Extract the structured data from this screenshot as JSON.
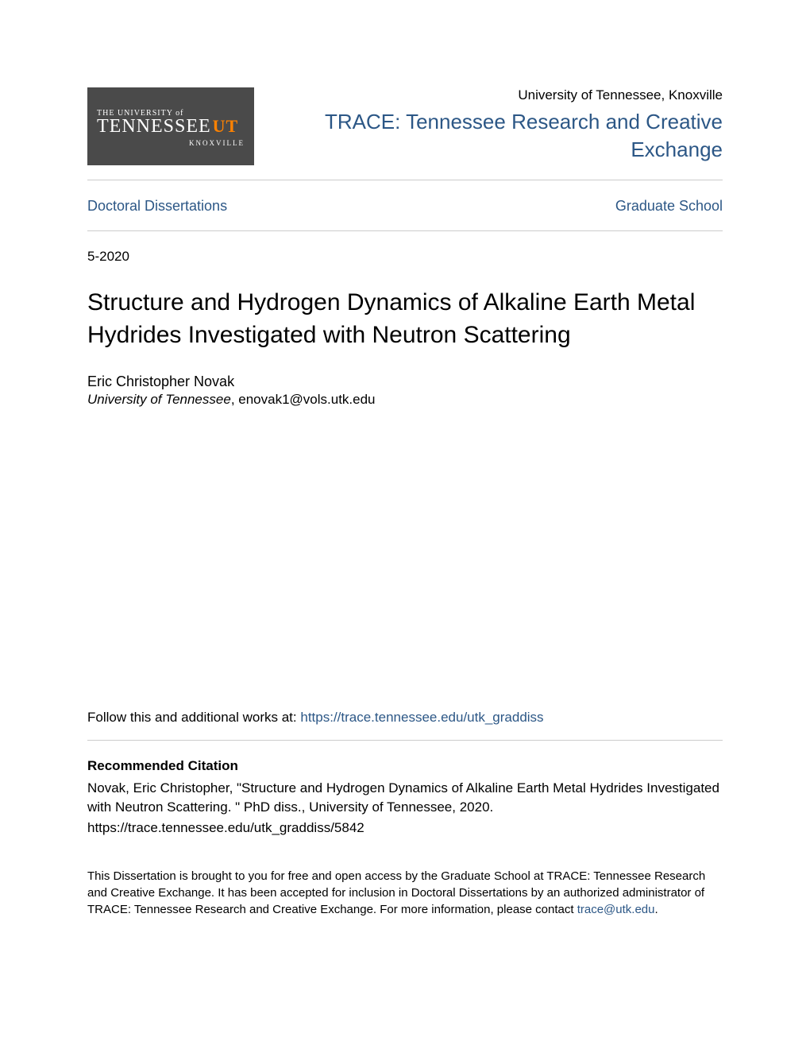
{
  "logo": {
    "line1": "THE UNIVERSITY of",
    "line2": "TENNESSEE",
    "ut": "UT",
    "line3": "KNOXVILLE",
    "bg_color": "#4a4a4a",
    "accent_color": "#ff8200"
  },
  "header": {
    "institution": "University of Tennessee, Knoxville",
    "repo_name": "TRACE: Tennessee Research and Creative Exchange"
  },
  "nav": {
    "left": "Doctoral Dissertations",
    "right": "Graduate School"
  },
  "date": "5-2020",
  "title": "Structure and Hydrogen Dynamics of Alkaline Earth Metal Hydrides Investigated with Neutron Scattering",
  "author": {
    "name": "Eric Christopher Novak",
    "affiliation": "University of Tennessee",
    "email": "enovak1@vols.utk.edu"
  },
  "follow": {
    "label": "Follow this and additional works at: ",
    "url": "https://trace.tennessee.edu/utk_graddiss"
  },
  "recommended": {
    "heading": "Recommended Citation",
    "text": "Novak, Eric Christopher, \"Structure and Hydrogen Dynamics of Alkaline Earth Metal Hydrides Investigated with Neutron Scattering. \" PhD diss., University of Tennessee, 2020.",
    "url": "https://trace.tennessee.edu/utk_graddiss/5842"
  },
  "disclaimer": {
    "text": "This Dissertation is brought to you for free and open access by the Graduate School at TRACE: Tennessee Research and Creative Exchange. It has been accepted for inclusion in Doctoral Dissertations by an authorized administrator of TRACE: Tennessee Research and Creative Exchange. For more information, please contact ",
    "contact": "trace@utk.edu",
    "period": "."
  },
  "colors": {
    "link": "#2c5786",
    "text": "#000000",
    "divider": "#cccccc",
    "background": "#ffffff"
  }
}
